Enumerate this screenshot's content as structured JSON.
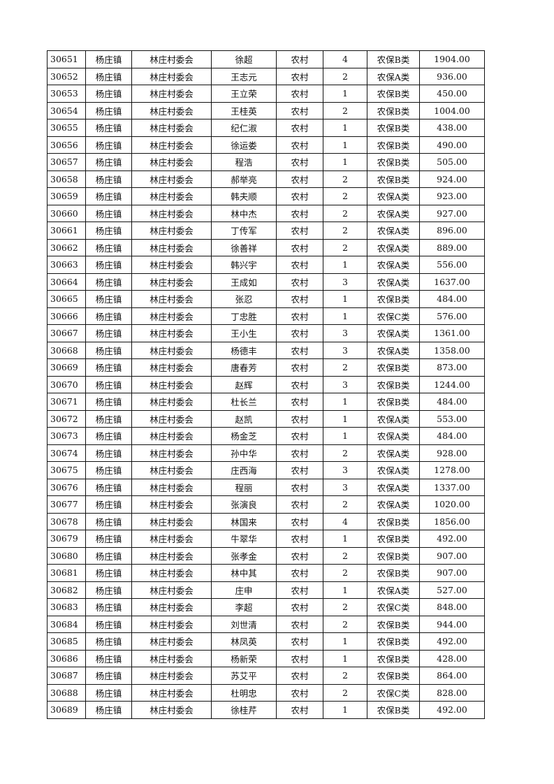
{
  "table": {
    "rows": [
      [
        "30651",
        "杨庄镇",
        "林庄村委会",
        "徐超",
        "农村",
        "4",
        "农保B类",
        "1904.00"
      ],
      [
        "30652",
        "杨庄镇",
        "林庄村委会",
        "王志元",
        "农村",
        "2",
        "农保A类",
        "936.00"
      ],
      [
        "30653",
        "杨庄镇",
        "林庄村委会",
        "王立荣",
        "农村",
        "1",
        "农保B类",
        "450.00"
      ],
      [
        "30654",
        "杨庄镇",
        "林庄村委会",
        "王桂英",
        "农村",
        "2",
        "农保B类",
        "1004.00"
      ],
      [
        "30655",
        "杨庄镇",
        "林庄村委会",
        "纪仁淑",
        "农村",
        "1",
        "农保B类",
        "438.00"
      ],
      [
        "30656",
        "杨庄镇",
        "林庄村委会",
        "徐运娄",
        "农村",
        "1",
        "农保B类",
        "490.00"
      ],
      [
        "30657",
        "杨庄镇",
        "林庄村委会",
        "程浩",
        "农村",
        "1",
        "农保B类",
        "505.00"
      ],
      [
        "30658",
        "杨庄镇",
        "林庄村委会",
        "郝举亮",
        "农村",
        "2",
        "农保B类",
        "924.00"
      ],
      [
        "30659",
        "杨庄镇",
        "林庄村委会",
        "韩夫顺",
        "农村",
        "2",
        "农保A类",
        "923.00"
      ],
      [
        "30660",
        "杨庄镇",
        "林庄村委会",
        "林中杰",
        "农村",
        "2",
        "农保A类",
        "927.00"
      ],
      [
        "30661",
        "杨庄镇",
        "林庄村委会",
        "丁传军",
        "农村",
        "2",
        "农保A类",
        "896.00"
      ],
      [
        "30662",
        "杨庄镇",
        "林庄村委会",
        "徐善祥",
        "农村",
        "2",
        "农保A类",
        "889.00"
      ],
      [
        "30663",
        "杨庄镇",
        "林庄村委会",
        "韩兴宇",
        "农村",
        "1",
        "农保A类",
        "556.00"
      ],
      [
        "30664",
        "杨庄镇",
        "林庄村委会",
        "王成如",
        "农村",
        "3",
        "农保A类",
        "1637.00"
      ],
      [
        "30665",
        "杨庄镇",
        "林庄村委会",
        "张忍",
        "农村",
        "1",
        "农保B类",
        "484.00"
      ],
      [
        "30666",
        "杨庄镇",
        "林庄村委会",
        "丁忠胜",
        "农村",
        "1",
        "农保C类",
        "576.00"
      ],
      [
        "30667",
        "杨庄镇",
        "林庄村委会",
        "王小生",
        "农村",
        "3",
        "农保A类",
        "1361.00"
      ],
      [
        "30668",
        "杨庄镇",
        "林庄村委会",
        "杨德丰",
        "农村",
        "3",
        "农保A类",
        "1358.00"
      ],
      [
        "30669",
        "杨庄镇",
        "林庄村委会",
        "唐春芳",
        "农村",
        "2",
        "农保B类",
        "873.00"
      ],
      [
        "30670",
        "杨庄镇",
        "林庄村委会",
        "赵辉",
        "农村",
        "3",
        "农保B类",
        "1244.00"
      ],
      [
        "30671",
        "杨庄镇",
        "林庄村委会",
        "杜长兰",
        "农村",
        "1",
        "农保B类",
        "484.00"
      ],
      [
        "30672",
        "杨庄镇",
        "林庄村委会",
        "赵凯",
        "农村",
        "1",
        "农保A类",
        "553.00"
      ],
      [
        "30673",
        "杨庄镇",
        "林庄村委会",
        "杨金芝",
        "农村",
        "1",
        "农保A类",
        "484.00"
      ],
      [
        "30674",
        "杨庄镇",
        "林庄村委会",
        "孙中华",
        "农村",
        "2",
        "农保A类",
        "928.00"
      ],
      [
        "30675",
        "杨庄镇",
        "林庄村委会",
        "庄西海",
        "农村",
        "3",
        "农保A类",
        "1278.00"
      ],
      [
        "30676",
        "杨庄镇",
        "林庄村委会",
        "程丽",
        "农村",
        "3",
        "农保A类",
        "1337.00"
      ],
      [
        "30677",
        "杨庄镇",
        "林庄村委会",
        "张演良",
        "农村",
        "2",
        "农保A类",
        "1020.00"
      ],
      [
        "30678",
        "杨庄镇",
        "林庄村委会",
        "林国来",
        "农村",
        "4",
        "农保B类",
        "1856.00"
      ],
      [
        "30679",
        "杨庄镇",
        "林庄村委会",
        "牛翠华",
        "农村",
        "1",
        "农保B类",
        "492.00"
      ],
      [
        "30680",
        "杨庄镇",
        "林庄村委会",
        "张孝金",
        "农村",
        "2",
        "农保B类",
        "907.00"
      ],
      [
        "30681",
        "杨庄镇",
        "林庄村委会",
        "林中其",
        "农村",
        "2",
        "农保B类",
        "907.00"
      ],
      [
        "30682",
        "杨庄镇",
        "林庄村委会",
        "庄申",
        "农村",
        "1",
        "农保A类",
        "527.00"
      ],
      [
        "30683",
        "杨庄镇",
        "林庄村委会",
        "李超",
        "农村",
        "2",
        "农保C类",
        "848.00"
      ],
      [
        "30684",
        "杨庄镇",
        "林庄村委会",
        "刘世清",
        "农村",
        "2",
        "农保B类",
        "944.00"
      ],
      [
        "30685",
        "杨庄镇",
        "林庄村委会",
        "林凤英",
        "农村",
        "1",
        "农保B类",
        "492.00"
      ],
      [
        "30686",
        "杨庄镇",
        "林庄村委会",
        "杨新荣",
        "农村",
        "1",
        "农保B类",
        "428.00"
      ],
      [
        "30687",
        "杨庄镇",
        "林庄村委会",
        "苏艾平",
        "农村",
        "2",
        "农保B类",
        "864.00"
      ],
      [
        "30688",
        "杨庄镇",
        "林庄村委会",
        "杜明忠",
        "农村",
        "2",
        "农保C类",
        "828.00"
      ],
      [
        "30689",
        "杨庄镇",
        "林庄村委会",
        "徐桂芹",
        "农村",
        "1",
        "农保B类",
        "492.00"
      ]
    ]
  }
}
